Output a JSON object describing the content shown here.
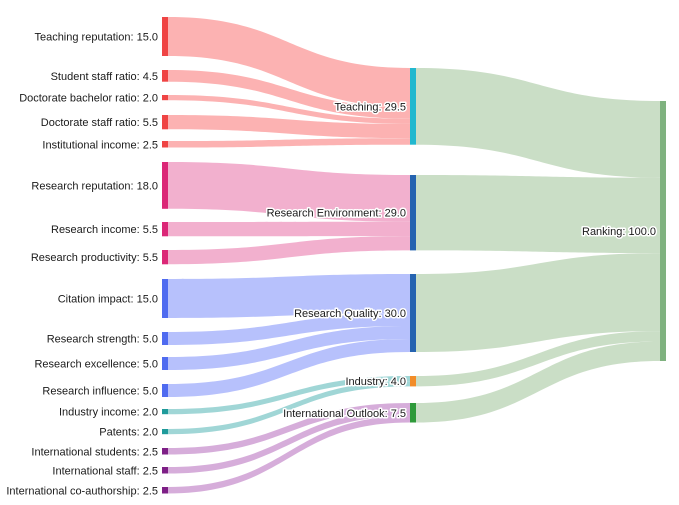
{
  "sources": [
    {
      "id": "teaching-reputation",
      "label": "Teaching reputation: 15.0",
      "value": 15.0,
      "color": "#ef4444",
      "link_color": "#fca5a5",
      "target": "teaching"
    },
    {
      "id": "student-staff-ratio",
      "label": "Student staff ratio: 4.5",
      "value": 4.5,
      "color": "#ef4444",
      "link_color": "#fca5a5",
      "target": "teaching"
    },
    {
      "id": "doctorate-bachelor-ratio",
      "label": "Doctorate bachelor ratio: 2.0",
      "value": 2.0,
      "color": "#ef4444",
      "link_color": "#fca5a5",
      "target": "teaching"
    },
    {
      "id": "doctorate-staff-ratio",
      "label": "Doctorate staff ratio: 5.5",
      "value": 5.5,
      "color": "#ef4444",
      "link_color": "#fca5a5",
      "target": "teaching"
    },
    {
      "id": "institutional-income",
      "label": "Institutional income: 2.5",
      "value": 2.5,
      "color": "#ef4444",
      "link_color": "#fca5a5",
      "target": "teaching"
    },
    {
      "id": "research-reputation",
      "label": "Research reputation: 18.0",
      "value": 18.0,
      "color": "#db2777",
      "link_color": "#f0a2c6",
      "target": "research-environment"
    },
    {
      "id": "research-income",
      "label": "Research income: 5.5",
      "value": 5.5,
      "color": "#db2777",
      "link_color": "#f0a2c6",
      "target": "research-environment"
    },
    {
      "id": "research-productivity",
      "label": "Research productivity: 5.5",
      "value": 5.5,
      "color": "#db2777",
      "link_color": "#f0a2c6",
      "target": "research-environment"
    },
    {
      "id": "citation-impact",
      "label": "Citation impact: 15.0",
      "value": 15.0,
      "color": "#4f6bf0",
      "link_color": "#aab6fb",
      "target": "research-quality"
    },
    {
      "id": "research-strength",
      "label": "Research strength: 5.0",
      "value": 5.0,
      "color": "#4f6bf0",
      "link_color": "#aab6fb",
      "target": "research-quality"
    },
    {
      "id": "research-excellence",
      "label": "Research excellence: 5.0",
      "value": 5.0,
      "color": "#4f6bf0",
      "link_color": "#aab6fb",
      "target": "research-quality"
    },
    {
      "id": "research-influence",
      "label": "Research influence: 5.0",
      "value": 5.0,
      "color": "#4f6bf0",
      "link_color": "#aab6fb",
      "target": "research-quality"
    },
    {
      "id": "industry-income",
      "label": "Industry income: 2.0",
      "value": 2.0,
      "color": "#1f9a9a",
      "link_color": "#8fcfcf",
      "target": "industry"
    },
    {
      "id": "patents",
      "label": "Patents: 2.0",
      "value": 2.0,
      "color": "#1f9a9a",
      "link_color": "#8fcfcf",
      "target": "industry"
    },
    {
      "id": "international-students",
      "label": "International students: 2.5",
      "value": 2.5,
      "color": "#7e1f86",
      "link_color": "#cf9fd3",
      "target": "international-outlook"
    },
    {
      "id": "international-staff",
      "label": "International staff: 2.5",
      "value": 2.5,
      "color": "#7e1f86",
      "link_color": "#cf9fd3",
      "target": "international-outlook"
    },
    {
      "id": "international-co-authorship",
      "label": "International co-authorship: 2.5",
      "value": 2.5,
      "color": "#7e1f86",
      "link_color": "#cf9fd3",
      "target": "international-outlook"
    }
  ],
  "middle": [
    {
      "id": "teaching",
      "label": "Teaching: 29.5",
      "value": 29.5,
      "color": "#22b8cf"
    },
    {
      "id": "research-environment",
      "label": "Research Environment: 29.0",
      "value": 29.0,
      "color": "#2563b0"
    },
    {
      "id": "research-quality",
      "label": "Research Quality: 30.0",
      "value": 30.0,
      "color": "#2563b0"
    },
    {
      "id": "industry",
      "label": "Industry: 4.0",
      "value": 4.0,
      "color": "#f28c28"
    },
    {
      "id": "international-outlook",
      "label": "International Outlook: 7.5",
      "value": 7.5,
      "color": "#2e9a3a"
    }
  ],
  "sink": {
    "id": "ranking",
    "label": "Ranking: 100.0",
    "value": 100.0,
    "color": "#7fb27f"
  },
  "colors": {
    "to_ranking_link": "#c7dcc3"
  }
}
